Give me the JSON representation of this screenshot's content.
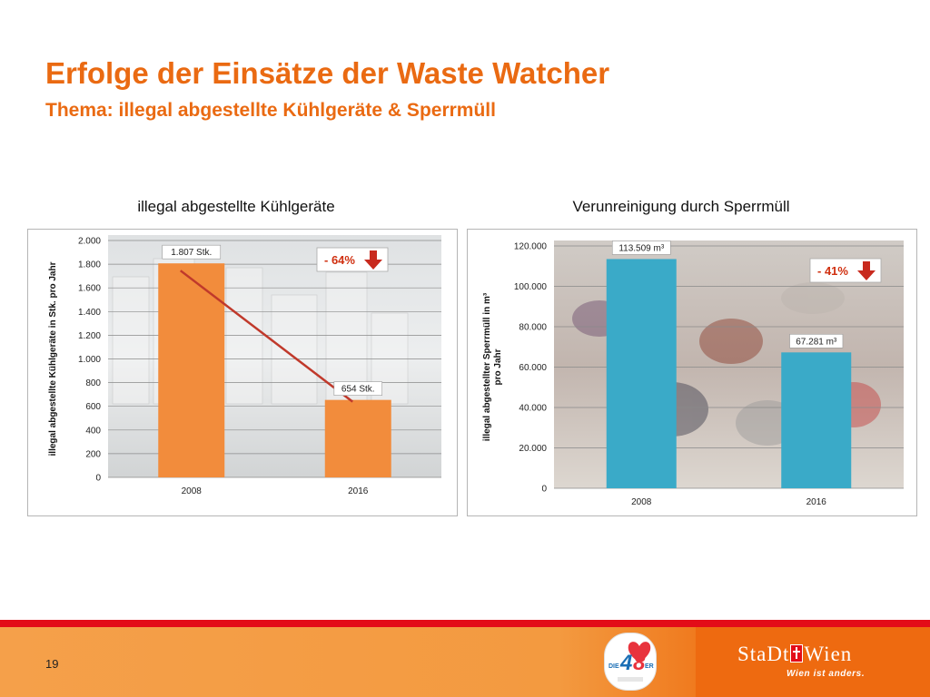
{
  "slide": {
    "title": "Erfolge der Einsätze der Waste Watcher",
    "subtitle": "Thema: illegal abgestellte Kühlgeräte & Sperrmüll",
    "page_number": "19"
  },
  "footer": {
    "logo48_text": "DIE 48 ER",
    "city_logo": "StaDt",
    "city_logo_suffix": "Wien",
    "city_slogan": "Wien ist anders."
  },
  "colors": {
    "accent": "#ea6a12",
    "bar_left": "#f28c3c",
    "bar_right": "#3aaac8",
    "trend_line": "#c0392b",
    "footer_red": "#e30c18"
  },
  "chart_data": [
    {
      "type": "bar",
      "title": "illegal abgestellte Kühlgeräte",
      "ylabel": "illegal abgestellte Kühlgeräte in Stk. pro Jahr",
      "xlabel": "",
      "categories": [
        "2008",
        "2016"
      ],
      "values": [
        1807,
        654
      ],
      "value_labels": [
        "1.807 Stk.",
        "654 Stk."
      ],
      "ylim": [
        0,
        2000
      ],
      "y_ticks": [
        0,
        200,
        400,
        600,
        800,
        1000,
        1200,
        1400,
        1600,
        1800,
        2000
      ],
      "y_tick_labels": [
        "0",
        "200",
        "400",
        "600",
        "800",
        "1.000",
        "1.200",
        "1.400",
        "1.600",
        "1.800",
        "2.000"
      ],
      "change_label": "- 64%",
      "trend_line": true,
      "grid": true,
      "background": "photo of refrigerators"
    },
    {
      "type": "bar",
      "title": "Verunreinigung durch Sperrmüll",
      "ylabel": "illegal abgestellter Sperrmüll in m³ pro Jahr",
      "xlabel": "",
      "categories": [
        "2008",
        "2016"
      ],
      "values": [
        113509,
        67281
      ],
      "value_labels": [
        "113.509 m³",
        "67.281 m³"
      ],
      "ylim": [
        0,
        120000
      ],
      "y_ticks": [
        0,
        20000,
        40000,
        60000,
        80000,
        100000,
        120000
      ],
      "y_tick_labels": [
        "0",
        "20.000",
        "40.000",
        "60.000",
        "80.000",
        "100.000",
        "120.000"
      ],
      "change_label": "- 41%",
      "trend_line": false,
      "grid": true,
      "background": "photo of bulky waste"
    }
  ]
}
